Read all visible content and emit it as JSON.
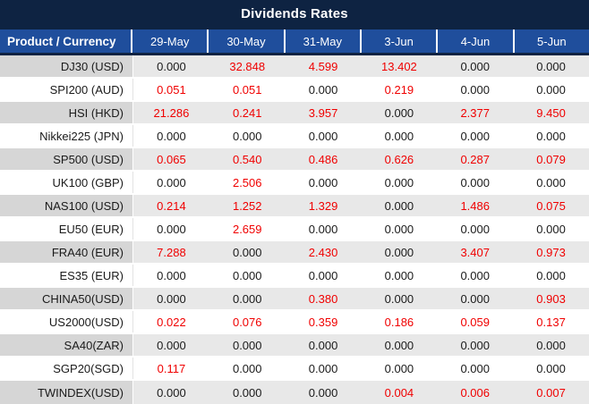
{
  "title": "Dividends Rates",
  "colors": {
    "navy_background": "#0E2342",
    "header_blue": "#1F4E9C",
    "gray_row_label": "#D6D6D6",
    "gray_row_value": "#E8E8E8",
    "white_row": "#FFFFFF",
    "value_black": "#1A1A1A",
    "value_red": "#F00000"
  },
  "table": {
    "product_column_header": "Product / Currency",
    "date_columns": [
      "29-May",
      "30-May",
      "31-May",
      "3-Jun",
      "4-Jun",
      "5-Jun"
    ],
    "rows": [
      {
        "product": "DJ30 (USD)",
        "values": [
          "0.000",
          "32.848",
          "4.599",
          "13.402",
          "0.000",
          "0.000"
        ],
        "red": [
          false,
          true,
          true,
          true,
          false,
          false
        ]
      },
      {
        "product": "SPI200 (AUD)",
        "values": [
          "0.051",
          "0.051",
          "0.000",
          "0.219",
          "0.000",
          "0.000"
        ],
        "red": [
          true,
          true,
          false,
          true,
          false,
          false
        ]
      },
      {
        "product": "HSI (HKD)",
        "values": [
          "21.286",
          "0.241",
          "3.957",
          "0.000",
          "2.377",
          "9.450"
        ],
        "red": [
          true,
          true,
          true,
          false,
          true,
          true
        ]
      },
      {
        "product": "Nikkei225 (JPN)",
        "values": [
          "0.000",
          "0.000",
          "0.000",
          "0.000",
          "0.000",
          "0.000"
        ],
        "red": [
          false,
          false,
          false,
          false,
          false,
          false
        ]
      },
      {
        "product": "SP500 (USD)",
        "values": [
          "0.065",
          "0.540",
          "0.486",
          "0.626",
          "0.287",
          "0.079"
        ],
        "red": [
          true,
          true,
          true,
          true,
          true,
          true
        ]
      },
      {
        "product": "UK100 (GBP)",
        "values": [
          "0.000",
          "2.506",
          "0.000",
          "0.000",
          "0.000",
          "0.000"
        ],
        "red": [
          false,
          true,
          false,
          false,
          false,
          false
        ]
      },
      {
        "product": "NAS100 (USD)",
        "values": [
          "0.214",
          "1.252",
          "1.329",
          "0.000",
          "1.486",
          "0.075"
        ],
        "red": [
          true,
          true,
          true,
          false,
          true,
          true
        ]
      },
      {
        "product": "EU50 (EUR)",
        "values": [
          "0.000",
          "2.659",
          "0.000",
          "0.000",
          "0.000",
          "0.000"
        ],
        "red": [
          false,
          true,
          false,
          false,
          false,
          false
        ]
      },
      {
        "product": "FRA40 (EUR)",
        "values": [
          "7.288",
          "0.000",
          "2.430",
          "0.000",
          "3.407",
          "0.973"
        ],
        "red": [
          true,
          false,
          true,
          false,
          true,
          true
        ]
      },
      {
        "product": "ES35 (EUR)",
        "values": [
          "0.000",
          "0.000",
          "0.000",
          "0.000",
          "0.000",
          "0.000"
        ],
        "red": [
          false,
          false,
          false,
          false,
          false,
          false
        ]
      },
      {
        "product": "CHINA50(USD)",
        "values": [
          "0.000",
          "0.000",
          "0.380",
          "0.000",
          "0.000",
          "0.903"
        ],
        "red": [
          false,
          false,
          true,
          false,
          false,
          true
        ]
      },
      {
        "product": "US2000(USD)",
        "values": [
          "0.022",
          "0.076",
          "0.359",
          "0.186",
          "0.059",
          "0.137"
        ],
        "red": [
          true,
          true,
          true,
          true,
          true,
          true
        ]
      },
      {
        "product": "SA40(ZAR)",
        "values": [
          "0.000",
          "0.000",
          "0.000",
          "0.000",
          "0.000",
          "0.000"
        ],
        "red": [
          false,
          false,
          false,
          false,
          false,
          false
        ]
      },
      {
        "product": "SGP20(SGD)",
        "values": [
          "0.117",
          "0.000",
          "0.000",
          "0.000",
          "0.000",
          "0.000"
        ],
        "red": [
          true,
          false,
          false,
          false,
          false,
          false
        ]
      },
      {
        "product": "TWINDEX(USD)",
        "values": [
          "0.000",
          "0.000",
          "0.000",
          "0.004",
          "0.006",
          "0.007"
        ],
        "red": [
          false,
          false,
          false,
          true,
          true,
          true
        ]
      }
    ]
  }
}
